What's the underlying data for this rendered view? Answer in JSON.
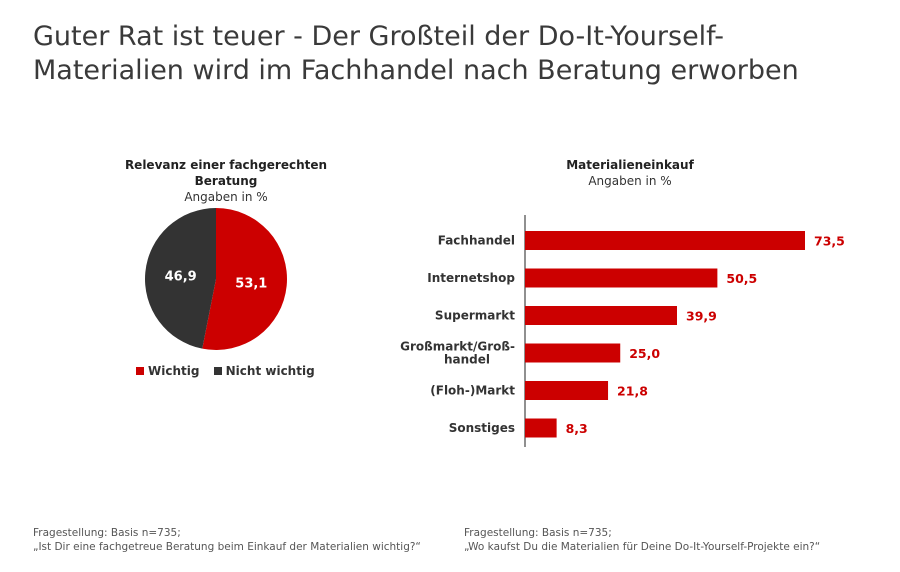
{
  "title": "Guter Rat ist teuer - Der Großteil der Do-It-Yourself-Materialien wird im Fachhandel nach Beratung erworben",
  "colors": {
    "red": "#cc0000",
    "dark": "#333333"
  },
  "pie": {
    "title": "Relevanz einer fachgerechten Beratung",
    "subtitle": "Angaben in %",
    "legend": [
      {
        "label": "Wichtig",
        "color": "#cc0000"
      },
      {
        "label": "Nicht wichtig",
        "color": "#333333"
      }
    ],
    "footnote_line1": "Fragestellung: Basis n=735;",
    "footnote_line2": "„Ist Dir eine fachgetreue Beratung beim Einkauf der Materialien wichtig?“"
  },
  "bars": {
    "title": "Materialieneinkauf",
    "subtitle": "Angaben in %",
    "footnote_line1": "Fragestellung: Basis n=735;",
    "footnote_line2": "„Wo kaufst Du die Materialien für Deine Do-It-Yourself-Projekte ein?“"
  },
  "chart_data": [
    {
      "type": "pie",
      "title": "Relevanz einer fachgerechten Beratung",
      "subtitle": "Angaben in %",
      "slices": [
        {
          "label": "Wichtig",
          "value": 53.1,
          "display": "53,1",
          "color": "#cc0000"
        },
        {
          "label": "Nicht wichtig",
          "value": 46.9,
          "display": "46,9",
          "color": "#333333"
        }
      ],
      "legend_position": "bottom"
    },
    {
      "type": "bar",
      "orientation": "horizontal",
      "title": "Materialieneinkauf",
      "subtitle": "Angaben in %",
      "categories": [
        [
          "Fachhandel"
        ],
        [
          "Internetshop"
        ],
        [
          "Supermarkt"
        ],
        [
          "Großmarkt/Groß-",
          "handel"
        ],
        [
          "(Floh-)Markt"
        ],
        [
          "Sonstiges"
        ]
      ],
      "values": [
        73.5,
        50.5,
        39.9,
        25.0,
        21.8,
        8.3
      ],
      "labels": [
        "73,5",
        "50,5",
        "39,9",
        "25,0",
        "21,8",
        "8,3"
      ],
      "xlim": [
        0,
        80
      ],
      "color": "#cc0000",
      "grid": false
    }
  ]
}
